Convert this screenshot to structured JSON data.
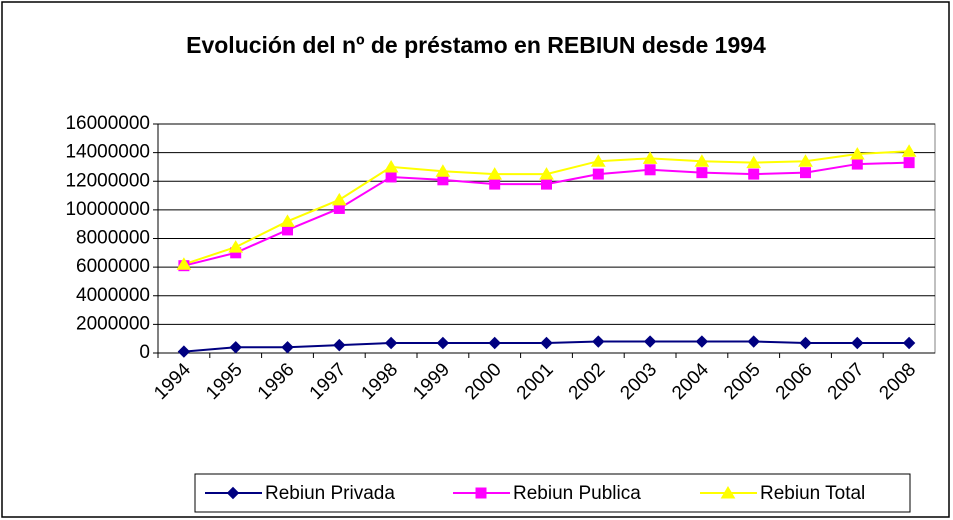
{
  "chart_data": {
    "type": "line",
    "title": "Evolución del nº de préstamo en REBIUN desde 1994",
    "categories": [
      "1994",
      "1995",
      "1996",
      "1997",
      "1998",
      "1999",
      "2000",
      "2001",
      "2002",
      "2003",
      "2004",
      "2005",
      "2006",
      "2007",
      "2008"
    ],
    "series": [
      {
        "name": "Rebiun Privada",
        "color": "#000080",
        "marker": "diamond",
        "values": [
          100000,
          400000,
          400000,
          550000,
          700000,
          700000,
          700000,
          700000,
          800000,
          800000,
          800000,
          800000,
          700000,
          700000,
          700000
        ]
      },
      {
        "name": "Rebiun Publica",
        "color": "#ff00ff",
        "marker": "square",
        "values": [
          6100000,
          7000000,
          8600000,
          10100000,
          12300000,
          12100000,
          11800000,
          11800000,
          12500000,
          12800000,
          12600000,
          12500000,
          12600000,
          13200000,
          13300000
        ]
      },
      {
        "name": "Rebiun Total",
        "color": "#ffff00",
        "marker": "triangle",
        "values": [
          6200000,
          7400000,
          9200000,
          10700000,
          13000000,
          12700000,
          12500000,
          12500000,
          13400000,
          13600000,
          13400000,
          13300000,
          13400000,
          13900000,
          14100000
        ]
      }
    ],
    "ylim": [
      0,
      16000000
    ],
    "yticks": [
      0,
      2000000,
      4000000,
      6000000,
      8000000,
      10000000,
      12000000,
      14000000,
      16000000
    ],
    "grid": true,
    "legend": "bottom"
  }
}
